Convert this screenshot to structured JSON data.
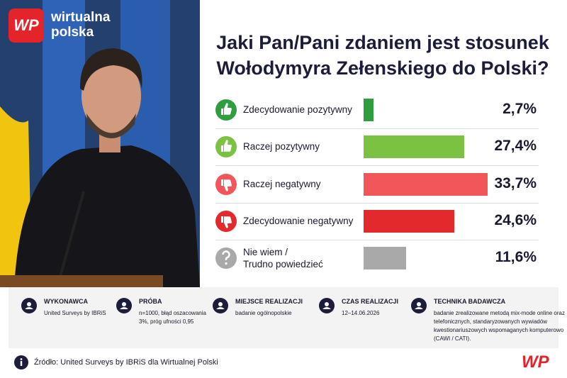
{
  "logo": "WP",
  "brand": [
    "wirtualna",
    "polska"
  ],
  "chart_data": {
    "type": "bar",
    "orientation": "horizontal",
    "title": "Jaki Pan/Pani zdaniem jest stosunek Wołodymyra Zełenskiego do Polski?",
    "categories": [
      "Zdecydowanie pozytywny",
      "Raczej pozytywny",
      "Raczej negatywny",
      "Zdecydowanie negatywny",
      "Nie wiem /\nTrudno powiedzieć"
    ],
    "values": [
      2.7,
      27.4,
      33.7,
      24.6,
      11.6
    ],
    "value_labels": [
      "2,7%",
      "27,4%",
      "33,7%",
      "24,6%",
      "11,6%"
    ],
    "colors": [
      "#2f9e3e",
      "#7cc242",
      "#f2565a",
      "#e4292c",
      "#a9a9a9"
    ]
  },
  "info": [
    {
      "title": "WYKONAWCA",
      "text": "United Surveys by IBRiS"
    },
    {
      "title": "PRÓBA",
      "text": "n=1000, błąd oszacowania 3%, próg ufności 0,95"
    },
    {
      "title": "MIEJSCE REALIZACJI",
      "text": "badanie ogólnopolskie"
    },
    {
      "title": "CZAS REALIZACJI",
      "text": "12–14.06.2026"
    },
    {
      "title": "TECHNIKA BADAWCZA",
      "text": "badanie zrealizowane metodą mix-mode online oraz telefonicznych, standaryzowanych wywiadów kwestionariuszowych wspomaganych komputerowo (CAWI / CATI)."
    }
  ],
  "source": "Źródło: United Surveys by IBRiS dla Wirtualnej Polski"
}
